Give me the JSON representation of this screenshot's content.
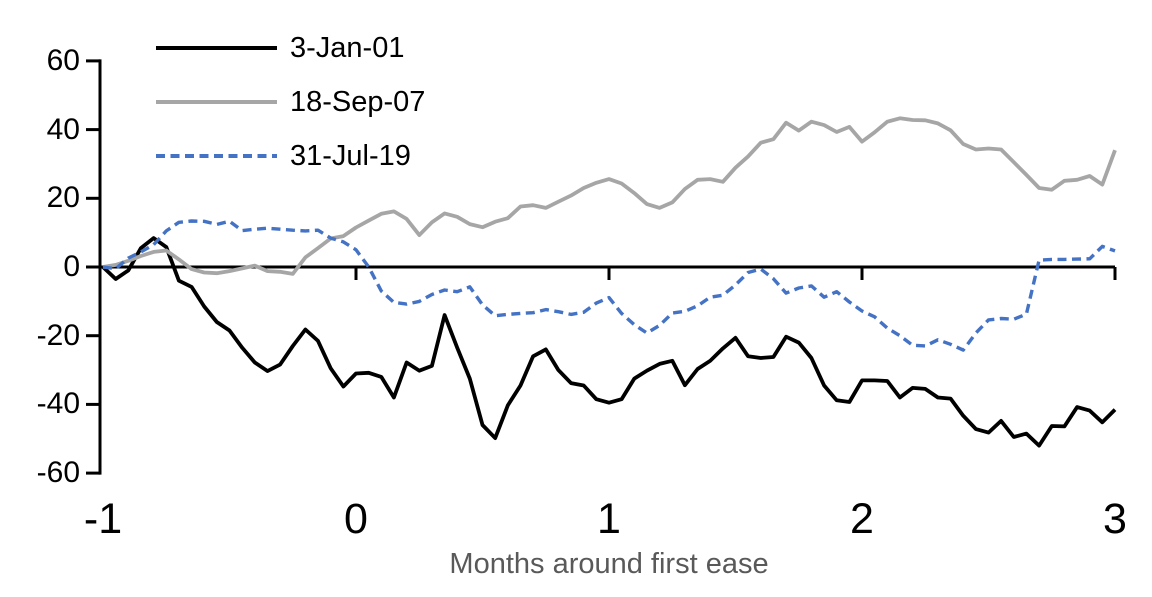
{
  "chart_data": {
    "type": "line",
    "title": "",
    "xlabel": "Months around first ease",
    "ylabel": "",
    "xlim": [
      -1,
      3
    ],
    "ylim": [
      -60,
      60
    ],
    "x_tick_labels": [
      -1,
      0,
      1,
      2,
      3
    ],
    "x_axis_tick_marks": [
      0,
      1,
      2,
      3
    ],
    "y_ticks": [
      60,
      40,
      20,
      0,
      -20,
      -40,
      -60
    ],
    "grid": false,
    "legend_position": "top-left",
    "axis_color": "#000000",
    "xlabel_color": "#595959",
    "x": [
      -1,
      -0.95,
      -0.9,
      -0.85,
      -0.8,
      -0.75,
      -0.7,
      -0.65,
      -0.6,
      -0.55,
      -0.5,
      -0.45,
      -0.4,
      -0.35,
      -0.3,
      -0.25,
      -0.2,
      -0.15,
      -0.1,
      -0.05,
      0,
      0.05,
      0.1,
      0.15,
      0.2,
      0.25,
      0.3,
      0.35,
      0.4,
      0.45,
      0.5,
      0.55,
      0.6,
      0.65,
      0.7,
      0.75,
      0.8,
      0.85,
      0.9,
      0.95,
      1,
      1.05,
      1.1,
      1.15,
      1.2,
      1.25,
      1.3,
      1.35,
      1.4,
      1.45,
      1.5,
      1.55,
      1.6,
      1.65,
      1.7,
      1.75,
      1.8,
      1.85,
      1.9,
      1.95,
      2,
      2.05,
      2.1,
      2.15,
      2.2,
      2.25,
      2.3,
      2.35,
      2.4,
      2.45,
      2.5,
      2.55,
      2.6,
      2.65,
      2.7,
      2.75,
      2.8,
      2.85,
      2.9,
      2.95,
      3
    ],
    "series": [
      {
        "name": "3-Jan-01",
        "color": "#000000",
        "style": "solid",
        "values": [
          0,
          -3.5,
          -1.0,
          5.5,
          8.4,
          5.8,
          -4.0,
          -5.8,
          -11.5,
          -16.0,
          -18.5,
          -23.5,
          -27.8,
          -30.3,
          -28.4,
          -23.0,
          -18.2,
          -21.5,
          -29.5,
          -34.8,
          -31.0,
          -30.8,
          -32.0,
          -38.0,
          -27.8,
          -30.2,
          -28.8,
          -14.0,
          -23.5,
          -32.5,
          -46.0,
          -49.8,
          -40.3,
          -34.5,
          -26.0,
          -24.0,
          -30.0,
          -33.8,
          -34.5,
          -38.5,
          -39.5,
          -38.5,
          -32.5,
          -30.2,
          -28.2,
          -27.3,
          -34.4,
          -29.7,
          -27.3,
          -23.7,
          -20.6,
          -26.0,
          -26.5,
          -26.2,
          -20.3,
          -22.0,
          -26.5,
          -34.5,
          -38.8,
          -39.3,
          -33.0,
          -33.0,
          -33.2,
          -38.0,
          -35.2,
          -35.5,
          -38.0,
          -38.3,
          -43.3,
          -47.2,
          -48.2,
          -44.8,
          -49.5,
          -48.5,
          -52.0,
          -46.3,
          -46.4,
          -40.8,
          -41.8,
          -45.2,
          -41.5
        ]
      },
      {
        "name": "18-Sep-07",
        "color": "#A6A6A6",
        "style": "solid",
        "values": [
          0,
          0.6,
          1.8,
          3.2,
          4.4,
          4.8,
          2.2,
          -0.6,
          -1.6,
          -1.8,
          -1.2,
          -0.4,
          0.4,
          -1.2,
          -1.4,
          -2.0,
          2.8,
          5.5,
          8.3,
          9.0,
          11.5,
          13.5,
          15.5,
          16.2,
          14.0,
          9.3,
          13.0,
          15.6,
          14.6,
          12.5,
          11.6,
          13.2,
          14.2,
          17.6,
          18.0,
          17.2,
          19.0,
          20.8,
          23.0,
          24.5,
          25.6,
          24.3,
          21.5,
          18.3,
          17.2,
          18.8,
          22.7,
          25.4,
          25.6,
          24.8,
          28.9,
          32.2,
          36.2,
          37.2,
          42.0,
          39.7,
          42.3,
          41.3,
          39.3,
          40.8,
          36.5,
          39.2,
          42.3,
          43.3,
          42.8,
          42.7,
          41.8,
          39.8,
          35.8,
          34.2,
          34.5,
          34.2,
          30.5,
          26.8,
          23.0,
          22.5,
          25.1,
          25.4,
          26.5,
          24.0,
          34.0
        ]
      },
      {
        "name": "31-Jul-19",
        "color": "#4472C4",
        "style": "dashed",
        "values": [
          0,
          -0.5,
          2.6,
          4.4,
          6.5,
          10.5,
          13.0,
          13.4,
          13.3,
          12.4,
          13.3,
          10.6,
          11.0,
          11.3,
          11.0,
          10.7,
          10.5,
          10.7,
          8.4,
          7.3,
          5.0,
          0.0,
          -7.0,
          -10.3,
          -10.8,
          -10.0,
          -8.0,
          -6.7,
          -7.2,
          -5.8,
          -11.0,
          -14.2,
          -13.8,
          -13.5,
          -13.3,
          -12.4,
          -13.0,
          -13.8,
          -13.2,
          -10.5,
          -8.9,
          -13.5,
          -16.8,
          -19.2,
          -17.0,
          -13.4,
          -12.9,
          -11.3,
          -8.8,
          -8.2,
          -5.2,
          -1.6,
          -0.6,
          -3.4,
          -7.6,
          -6.1,
          -5.5,
          -8.8,
          -7.2,
          -10.2,
          -12.8,
          -14.5,
          -17.8,
          -20.0,
          -22.8,
          -23.0,
          -21.2,
          -22.5,
          -24.2,
          -19.2,
          -15.4,
          -15.0,
          -15.2,
          -13.7,
          2.0,
          2.2,
          2.2,
          2.3,
          2.4,
          6.0,
          4.7
        ]
      }
    ]
  }
}
